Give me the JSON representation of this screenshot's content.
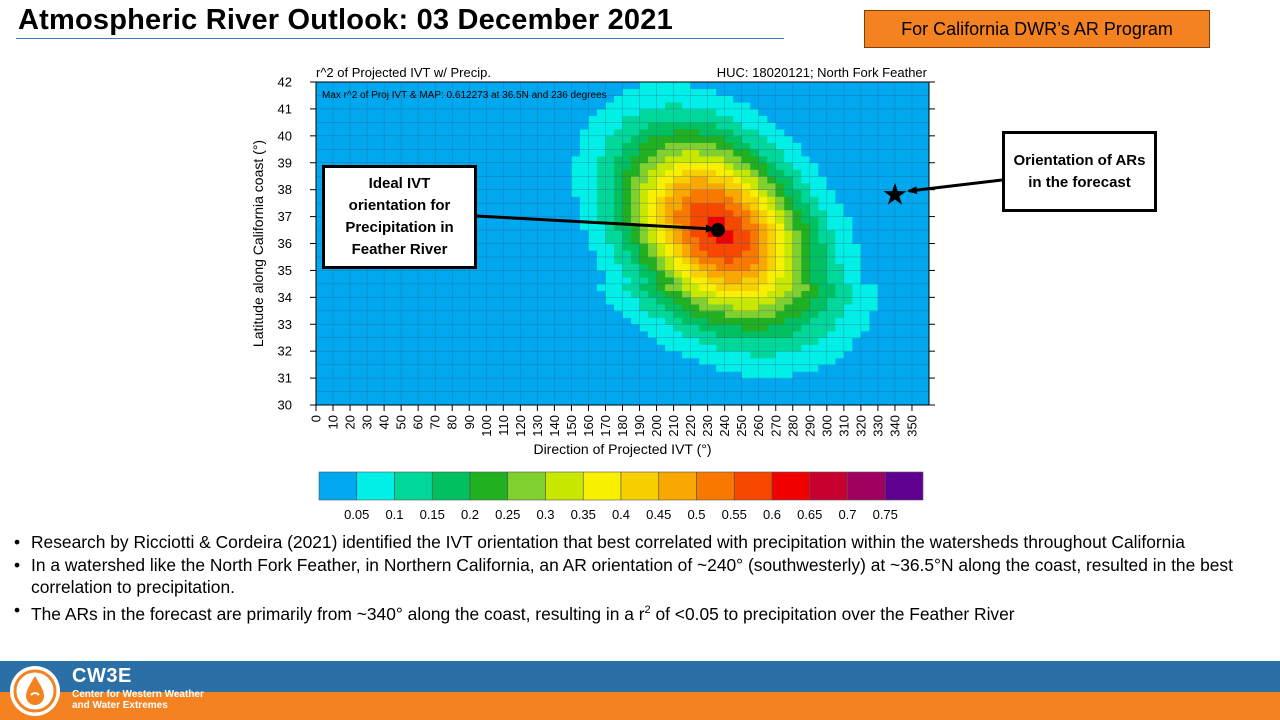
{
  "slide": {
    "title": "Atmospheric River Outlook: 03 December 2021",
    "program_label": "For California DWR’s AR Program"
  },
  "callouts": {
    "ideal": "Ideal IVT orientation for Precipitation in Feather River",
    "orientation": "Orientation of ARs in the forecast"
  },
  "bullets": [
    "Research by Ricciotti & Cordeira (2021) identified the IVT orientation that best correlated with precipitation within the watersheds throughout California",
    "In a watershed like the North Fork Feather, in Northern California, an AR orientation of ~240° (southwesterly) at ~36.5°N along the coast, resulted in the best correlation to precipitation."
  ],
  "bullet3": {
    "pre": "The ARs in the forecast are primarily from ~340° along the coast, resulting in a r",
    "sup": "2",
    "post": " of <0.05 to precipitation over the Feather River"
  },
  "footer": {
    "brand": "CW3E",
    "subtitle_line1": "Center for Western Weather",
    "subtitle_line2": "and Water Extremes",
    "bar_top_color": "#2a6fa6",
    "bar_bottom_color": "#f58220"
  },
  "chart_data": {
    "type": "heatmap",
    "title_left": "r^2 of Projected IVT w/ Precip.",
    "title_right": "HUC: 18020121; North Fork Feather",
    "annotation": "Max r^2 of Proj IVT & MAP: 0.612273 at 36.5N and 236 degrees",
    "xlabel": "Direction of Projected IVT (°)",
    "ylabel": "Latitude along California coast (°)",
    "x_ticks": [
      0,
      10,
      20,
      30,
      40,
      50,
      60,
      70,
      80,
      90,
      100,
      110,
      120,
      130,
      140,
      150,
      160,
      170,
      180,
      190,
      200,
      210,
      220,
      230,
      240,
      250,
      260,
      270,
      280,
      290,
      300,
      310,
      320,
      330,
      340,
      350
    ],
    "y_ticks": [
      30,
      31,
      32,
      33,
      34,
      35,
      36,
      37,
      38,
      39,
      40,
      41,
      42
    ],
    "xlim": [
      0,
      360
    ],
    "ylim": [
      30,
      42
    ],
    "max_point": {
      "direction": 236,
      "latitude": 36.5,
      "r2": 0.612273
    },
    "forecast_point": {
      "direction": 340,
      "latitude": 37.8
    },
    "colorbar_labels": [
      "0.05",
      "0.1",
      "0.15",
      "0.2",
      "0.25",
      "0.3",
      "0.35",
      "0.4",
      "0.45",
      "0.5",
      "0.55",
      "0.6",
      "0.65",
      "0.7",
      "0.75"
    ],
    "colorbar_colors": [
      "#00a8f0",
      "#00f0e8",
      "#00d89a",
      "#00c060",
      "#20b020",
      "#80d030",
      "#c8e800",
      "#f8f000",
      "#f8d000",
      "#f8a800",
      "#f87800",
      "#f84800",
      "#f00000",
      "#c80030",
      "#a00060",
      "#600090"
    ]
  }
}
